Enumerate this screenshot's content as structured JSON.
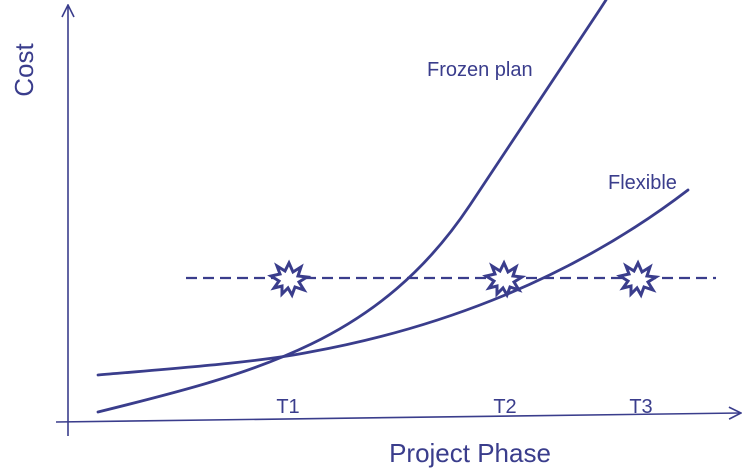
{
  "axes": {
    "x_label": "Project Phase",
    "y_label": "Cost"
  },
  "curves": [
    {
      "id": "frozen",
      "label": "Frozen plan"
    },
    {
      "id": "flexible",
      "label": "Flexible"
    }
  ],
  "milestones": [
    "T1",
    "T2",
    "T3"
  ],
  "events": [
    {
      "icon": "explosion-icon",
      "at": "T1"
    },
    {
      "icon": "explosion-icon",
      "at": "T2"
    },
    {
      "icon": "explosion-icon",
      "at": "T3"
    }
  ],
  "colors": {
    "ink": "#3a3d8c",
    "background": "#ffffff"
  }
}
